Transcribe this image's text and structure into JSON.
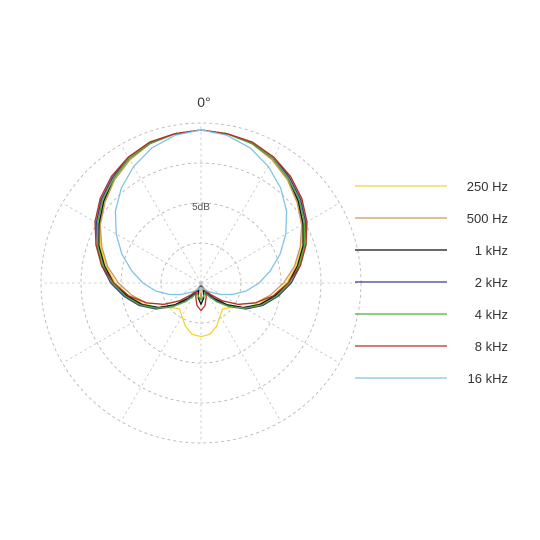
{
  "chart_data": {
    "type": "polar",
    "angle_label": "0°",
    "ring_label": "5dB",
    "grid": true,
    "legend_position": "right",
    "series": [
      {
        "name": "250 Hz",
        "color": "#f0d43a",
        "r": [
          1.0,
          0.99,
          0.97,
          0.93,
          0.88,
          0.82,
          0.76,
          0.7,
          0.63,
          0.56,
          0.48,
          0.4,
          0.32,
          0.25,
          0.22,
          0.25,
          0.3,
          0.34,
          0.35
        ]
      },
      {
        "name": "500 Hz",
        "color": "#c99a5a",
        "r": [
          1.0,
          0.99,
          0.97,
          0.93,
          0.88,
          0.82,
          0.76,
          0.69,
          0.62,
          0.54,
          0.46,
          0.38,
          0.28,
          0.18,
          0.1,
          0.04,
          0.02,
          0.05,
          0.1
        ]
      },
      {
        "name": "1 kHz",
        "color": "#111111",
        "r": [
          1.0,
          0.99,
          0.97,
          0.94,
          0.89,
          0.83,
          0.77,
          0.71,
          0.64,
          0.57,
          0.49,
          0.41,
          0.32,
          0.22,
          0.13,
          0.07,
          0.05,
          0.1,
          0.14
        ]
      },
      {
        "name": "2 kHz",
        "color": "#3a3a8c",
        "r": [
          1.0,
          0.99,
          0.98,
          0.95,
          0.9,
          0.85,
          0.79,
          0.73,
          0.66,
          0.59,
          0.51,
          0.43,
          0.34,
          0.24,
          0.15,
          0.08,
          0.04,
          0.02,
          0.02
        ]
      },
      {
        "name": "4 kHz",
        "color": "#4caf3a",
        "r": [
          1.0,
          0.99,
          0.97,
          0.94,
          0.89,
          0.84,
          0.78,
          0.72,
          0.65,
          0.58,
          0.5,
          0.42,
          0.33,
          0.24,
          0.16,
          0.1,
          0.07,
          0.09,
          0.11
        ]
      },
      {
        "name": "8 kHz",
        "color": "#b83020",
        "r": [
          1.0,
          0.99,
          0.98,
          0.95,
          0.91,
          0.86,
          0.8,
          0.73,
          0.66,
          0.57,
          0.48,
          0.38,
          0.28,
          0.18,
          0.1,
          0.06,
          0.1,
          0.15,
          0.18
        ]
      },
      {
        "name": "16 kHz",
        "color": "#7ec3e6",
        "r": [
          1.0,
          0.98,
          0.94,
          0.88,
          0.81,
          0.73,
          0.64,
          0.55,
          0.46,
          0.38,
          0.3,
          0.22,
          0.15,
          0.1,
          0.07,
          0.05,
          0.04,
          0.03,
          0.03
        ]
      }
    ]
  }
}
